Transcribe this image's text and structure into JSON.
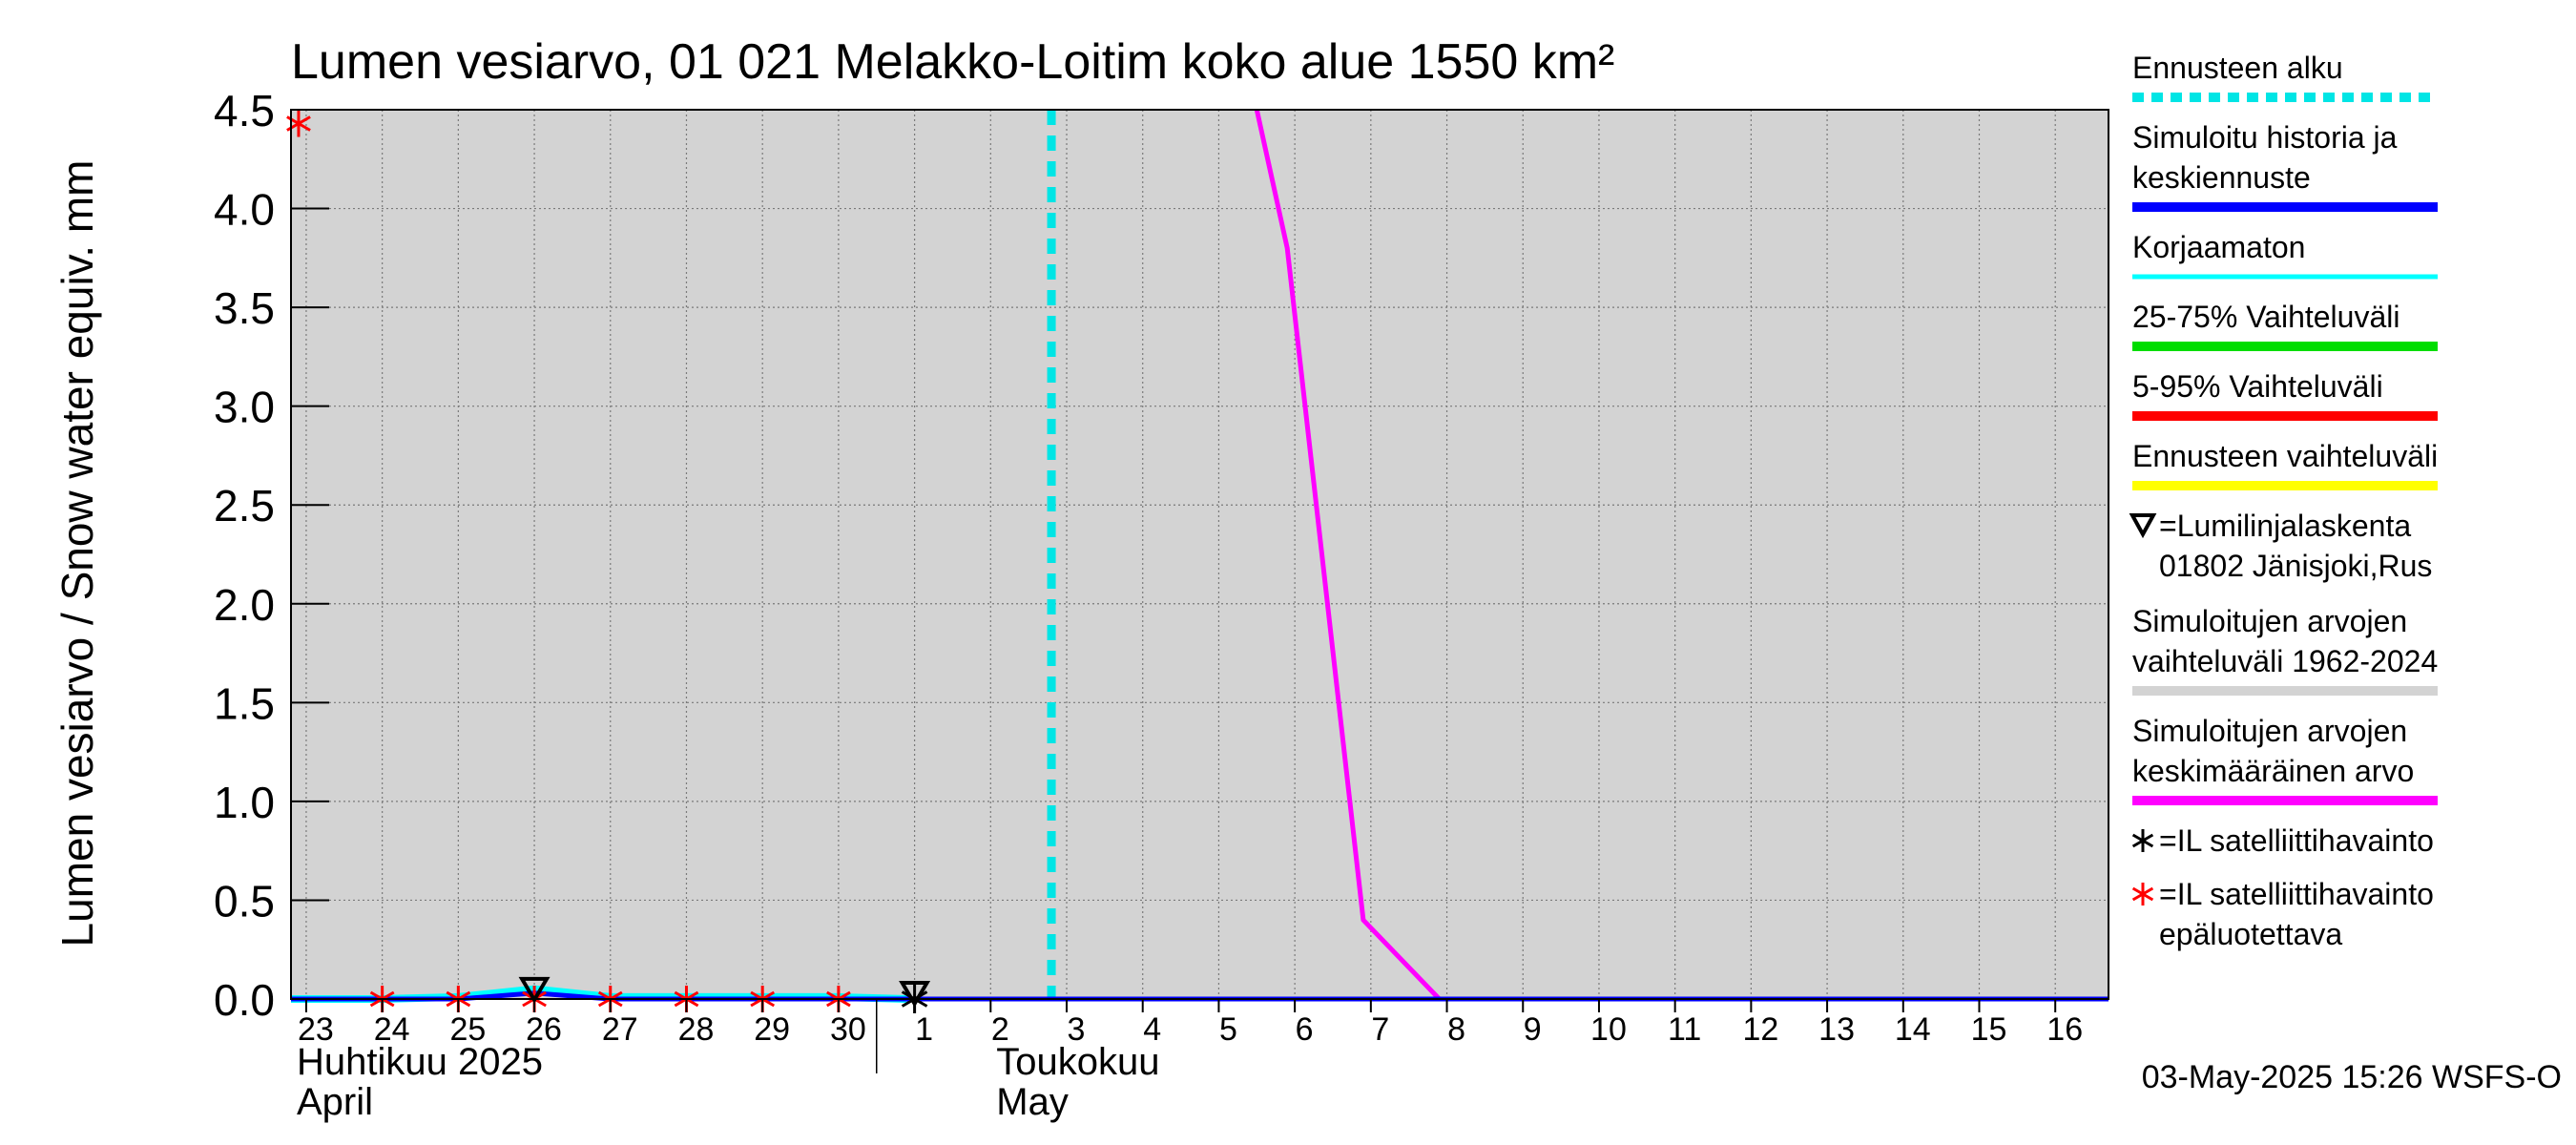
{
  "chart_data": {
    "type": "line",
    "title": "Lumen vesiarvo, 01 021 Melakko-Loitim koko alue 1550 km²",
    "ylabel": "Lumen vesiarvo / Snow water equiv.    mm",
    "ylim": [
      0,
      4.5
    ],
    "yticks": [
      {
        "value": 0.0,
        "label": "0.0"
      },
      {
        "value": 0.5,
        "label": "0.5"
      },
      {
        "value": 1.0,
        "label": "1.0"
      },
      {
        "value": 1.5,
        "label": "1.5"
      },
      {
        "value": 2.0,
        "label": "2.0"
      },
      {
        "value": 2.5,
        "label": "2.5"
      },
      {
        "value": 3.0,
        "label": "3.0"
      },
      {
        "value": 3.5,
        "label": "3.5"
      },
      {
        "value": 4.0,
        "label": "4.0"
      },
      {
        "value": 4.5,
        "label": "4.5"
      }
    ],
    "xlim": [
      -0.2,
      23.7
    ],
    "xticks": [
      {
        "value": 0,
        "label": "23"
      },
      {
        "value": 1,
        "label": "24"
      },
      {
        "value": 2,
        "label": "25"
      },
      {
        "value": 3,
        "label": "26"
      },
      {
        "value": 4,
        "label": "27"
      },
      {
        "value": 5,
        "label": "28"
      },
      {
        "value": 6,
        "label": "29"
      },
      {
        "value": 7,
        "label": "30"
      },
      {
        "value": 8,
        "label": "1"
      },
      {
        "value": 9,
        "label": "2"
      },
      {
        "value": 10,
        "label": "3"
      },
      {
        "value": 11,
        "label": "4"
      },
      {
        "value": 12,
        "label": "5"
      },
      {
        "value": 13,
        "label": "6"
      },
      {
        "value": 14,
        "label": "7"
      },
      {
        "value": 15,
        "label": "8"
      },
      {
        "value": 16,
        "label": "9"
      },
      {
        "value": 17,
        "label": "10"
      },
      {
        "value": 18,
        "label": "11"
      },
      {
        "value": 19,
        "label": "12"
      },
      {
        "value": 20,
        "label": "13"
      },
      {
        "value": 21,
        "label": "14"
      },
      {
        "value": 22,
        "label": "15"
      },
      {
        "value": 23,
        "label": "16"
      }
    ],
    "month_labels": [
      {
        "value": -0.2,
        "line1": "Huhtikuu  2025",
        "line2": "April"
      },
      {
        "value": 9.0,
        "line1": "Toukokuu",
        "line2": "May"
      }
    ],
    "month_boundary": 7.5,
    "forecast_start": 9.8,
    "series": [
      {
        "name": "Simuloitujen arvojen keskimääräinen arvo",
        "color": "#ff00ff",
        "x": [
          12.5,
          12.9,
          13.9,
          14.9,
          23.7
        ],
        "y": [
          4.5,
          3.8,
          0.4,
          0.0,
          0.0
        ]
      },
      {
        "name": "Korjaamaton",
        "color": "#00ffff",
        "x": [
          -0.2,
          1,
          2,
          3,
          4,
          5,
          6,
          7,
          7.9
        ],
        "y": [
          0.0,
          0.0,
          0.01,
          0.05,
          0.01,
          0.01,
          0.01,
          0.01,
          0.0
        ]
      },
      {
        "name": "Simuloitu historia ja keskiennuste",
        "color": "#0000ff",
        "x": [
          -0.2,
          1,
          2,
          3,
          4,
          5,
          6,
          7,
          8,
          23.7
        ],
        "y": [
          0.0,
          0.0,
          0.0,
          0.03,
          0.0,
          0.0,
          0.0,
          0.0,
          0.0,
          0.0
        ]
      }
    ],
    "markers": {
      "unreliable_satellite": {
        "color": "#ff0000",
        "x": [
          -0.1,
          1,
          2,
          3,
          4,
          5,
          6,
          7
        ],
        "y": [
          4.43,
          0.0,
          0.0,
          0.0,
          0.0,
          0.0,
          0.0,
          0.0
        ]
      },
      "satellite": {
        "color": "#000000",
        "x": [
          8
        ],
        "y": [
          0.0
        ]
      },
      "snow_course": {
        "color": "#000000",
        "x": [
          3,
          8
        ],
        "y": [
          0.02,
          0.0
        ]
      }
    },
    "legend": {
      "placement": "right",
      "entries": [
        {
          "lines": [
            "Ennusteen alku"
          ],
          "color": "#00e5e5",
          "style": "dashed"
        },
        {
          "lines": [
            "Simuloitu historia ja",
            "keskiennuste"
          ],
          "color": "#0000ff",
          "style": "solid"
        },
        {
          "lines": [
            "Korjaamaton"
          ],
          "color": "#00ffff",
          "style": "solid"
        },
        {
          "lines": [
            "25-75% Vaihteluväli"
          ],
          "color": "#00dd00",
          "style": "solid"
        },
        {
          "lines": [
            "5-95% Vaihteluväli"
          ],
          "color": "#ff0000",
          "style": "solid"
        },
        {
          "lines": [
            "Ennusteen vaihteluväli"
          ],
          "color": "#ffff00",
          "style": "solid"
        },
        {
          "lines": [
            "=Lumilinjalaskenta",
            "01802 Jänisjoki,Rus"
          ],
          "color": "#000000",
          "style": "triangle"
        },
        {
          "lines": [
            "Simuloitujen arvojen",
            "vaihteluväli 1962-2024"
          ],
          "color": "#d3d3d3",
          "style": "solid"
        },
        {
          "lines": [
            "Simuloitujen arvojen",
            "keskimääräinen arvo"
          ],
          "color": "#ff00ff",
          "style": "solid"
        },
        {
          "lines": [
            "=IL satelliittihavainto"
          ],
          "color": "#000000",
          "style": "star"
        },
        {
          "lines": [
            "=IL satelliittihavainto",
            "epäluotettava"
          ],
          "color": "#ff0000",
          "style": "star"
        }
      ]
    },
    "footer": "03-May-2025 15:26 WSFS-O",
    "background_band_color": "#d3d3d3"
  }
}
